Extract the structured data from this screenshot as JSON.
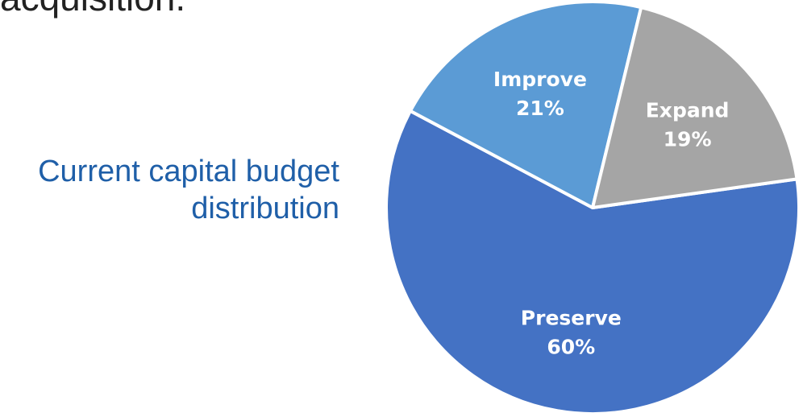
{
  "slide": {
    "top_text": "acquisition.",
    "caption_line1": "Current capital budget",
    "caption_line2": "distribution"
  },
  "chart_data": {
    "type": "pie",
    "title": "",
    "categories": [
      "Preserve",
      "Improve",
      "Expand"
    ],
    "values": [
      60,
      21,
      19
    ],
    "value_labels": [
      "60%",
      "21%",
      "19%"
    ],
    "colors": [
      "#4472c4",
      "#5b9bd5",
      "#a5a5a5"
    ],
    "legend": "none"
  }
}
